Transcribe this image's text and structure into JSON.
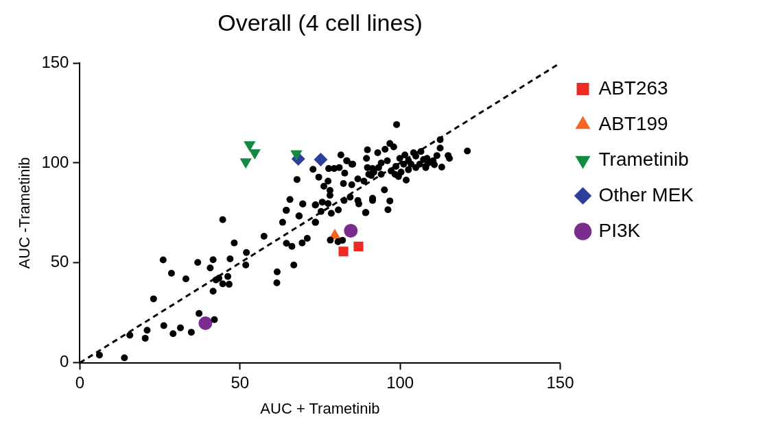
{
  "chart_data": {
    "type": "scatter",
    "title": "Overall (4 cell lines)",
    "xlabel": "AUC + Trametinib",
    "ylabel": "AUC -Trametinib",
    "xlim": [
      0,
      150
    ],
    "ylim": [
      0,
      150
    ],
    "xticks": [
      0,
      50,
      100,
      150
    ],
    "yticks": [
      0,
      50,
      100,
      150
    ],
    "grid": false,
    "legend": "right",
    "series": [
      {
        "color": "#000000",
        "marker": "circle",
        "x": [
          6.1,
          13.9,
          15.6,
          20.4,
          21,
          23,
          26,
          26.2,
          28.6,
          29.1,
          31.4,
          33.1,
          34.8,
          36.8,
          37.2,
          40.7,
          41.6,
          41.6,
          42,
          42.5,
          43.4,
          44.6,
          44.6,
          46.2,
          46.6,
          46.9,
          48.2,
          51.8,
          52,
          57.5,
          61.5,
          61.6,
          63.3,
          64.4,
          64.5,
          64.5,
          65.6,
          66.2,
          66.8,
          67.8,
          68.4,
          68.5,
          69.4,
          69.6,
          69.6,
          71,
          72.8,
          73.5,
          73.5,
          73.6,
          73.6,
          74.6,
          75.3,
          75.7,
          76.2,
          77.5,
          77.5,
          77.7,
          78.1,
          78.1,
          78.2,
          78.5,
          79.4,
          80.6,
          80.7,
          81,
          81.5,
          82,
          82.3,
          82.5,
          82.7,
          83.3,
          83.4,
          84.4,
          84.9,
          84.9,
          85.2,
          86.8,
          86.8,
          87.1,
          88.7,
          89.2,
          89.3,
          89.5,
          89.8,
          89.8,
          90.2,
          91,
          91.4,
          91.4,
          91.4,
          91.8,
          93,
          93.3,
          94.1,
          94.1,
          95.1,
          95.3,
          96,
          96.2,
          96.8,
          96.8,
          97.2,
          98,
          98.4,
          98.7,
          98.9,
          99.5,
          99.9,
          100.3,
          101.1,
          101.5,
          101.9,
          102.6,
          102.6,
          103.4,
          104.2,
          104.9,
          104.9,
          106.1,
          106.5,
          107.3,
          108,
          108,
          108.4,
          108.8,
          110.3,
          110.7,
          111.5,
          112.5,
          112.5,
          113,
          115,
          115.4,
          121
        ],
        "values": [
          3.9,
          2.5,
          13.8,
          12.3,
          16.3,
          32,
          51.5,
          18.6,
          44.8,
          14.6,
          17.5,
          42,
          15.3,
          50.2,
          24.7,
          47.5,
          51.6,
          35.8,
          21.6,
          41.5,
          42.3,
          71.6,
          39.5,
          43.2,
          39.3,
          52,
          60,
          48.9,
          55.2,
          63.3,
          40,
          45.5,
          70.3,
          76.3,
          59.8,
          76.3,
          81.7,
          58.3,
          48.9,
          91.7,
          73.5,
          73.4,
          60,
          79.5,
          79.5,
          62.3,
          96.8,
          78.9,
          70.3,
          79.1,
          70.3,
          92.9,
          75.7,
          80.4,
          88.3,
          90.9,
          79.7,
          97.2,
          86.3,
          83.8,
          61.4,
          74.8,
          97.2,
          60.6,
          76.5,
          97.7,
          104,
          61.3,
          89.7,
          81.2,
          94.9,
          101.1,
          101.1,
          82.9,
          89.1,
          99.4,
          99.4,
          92,
          81.2,
          79.5,
          90.9,
          75.1,
          75.2,
          102.3,
          106.6,
          97.7,
          94.3,
          93.7,
          81.2,
          82.3,
          97.2,
          95.4,
          105.1,
          97.7,
          100,
          94.3,
          86.5,
          106.8,
          101.1,
          76.6,
          81,
          109.7,
          96,
          108,
          94.3,
          98.3,
          119.2,
          93.2,
          102.3,
          95.4,
          99.4,
          104,
          91.4,
          101.1,
          96.6,
          99.4,
          105.1,
          103.4,
          97.7,
          99.4,
          105.7,
          101.7,
          98.3,
          97.7,
          102.3,
          100,
          101.1,
          99.1,
          103.7,
          111.6,
          107.4,
          97.9,
          103.7,
          102.3,
          106
        ]
      },
      {
        "type": "scatter",
        "name": "ABT263",
        "color": "#ee2a24",
        "marker": "square",
        "x": [
          82.3,
          87
        ],
        "values": [
          55.7,
          58.2
        ]
      },
      {
        "type": "scatter",
        "name": "ABT199",
        "color": "#f26522",
        "marker": "triangle",
        "x": [
          79.6
        ],
        "values": [
          63.7
        ]
      },
      {
        "type": "scatter",
        "name": "Trametinib",
        "color": "#138a43",
        "marker": "triangle-down",
        "x": [
          53,
          54.6,
          51.8,
          67.6
        ],
        "values": [
          109.1,
          105.1,
          100.6,
          104.6
        ]
      },
      {
        "type": "scatter",
        "name": "Other MEK",
        "color": "#2e3f9b",
        "marker": "diamond",
        "x": [
          68.2,
          75.2
        ],
        "values": [
          102,
          101.7
        ]
      },
      {
        "type": "scatter",
        "name": "PI3K",
        "color": "#7b2c8f",
        "marker": "circle",
        "x": [
          39.2,
          84.6
        ],
        "values": [
          19.8,
          66.1
        ]
      },
      {
        "type": "line",
        "color": "#000000",
        "marker": "none",
        "line_style": "dashed",
        "x": [
          0,
          150
        ],
        "values": [
          0,
          150
        ]
      }
    ]
  }
}
